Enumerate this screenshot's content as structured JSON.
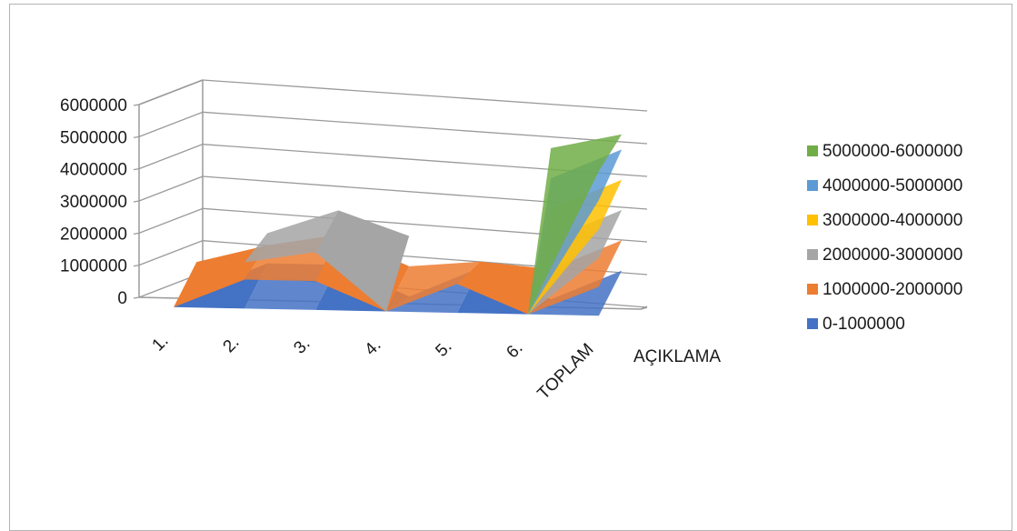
{
  "chart_data": {
    "type": "surface",
    "categories": [
      "1.",
      "2.",
      "3.",
      "4.",
      "5.",
      "6.",
      "TOPLAM"
    ],
    "series": [
      {
        "name": "AÇIKLAMA",
        "values": [
          0,
          1600000,
          2800000,
          0,
          1200000,
          0,
          5500000
        ]
      }
    ],
    "ylim": [
      0,
      6000000
    ],
    "yticks": [
      "0",
      "1000000",
      "2000000",
      "3000000",
      "4000000",
      "5000000",
      "6000000"
    ],
    "legend_position": "right",
    "legend": [
      {
        "label": "5000000-6000000",
        "color": "#70ad47"
      },
      {
        "label": "4000000-5000000",
        "color": "#5b9bd5"
      },
      {
        "label": "3000000-4000000",
        "color": "#ffc000"
      },
      {
        "label": "2000000-3000000",
        "color": "#a5a5a5"
      },
      {
        "label": "1000000-2000000",
        "color": "#ed7d31"
      },
      {
        "label": "0-1000000",
        "color": "#4472c4"
      }
    ],
    "grid": true
  }
}
